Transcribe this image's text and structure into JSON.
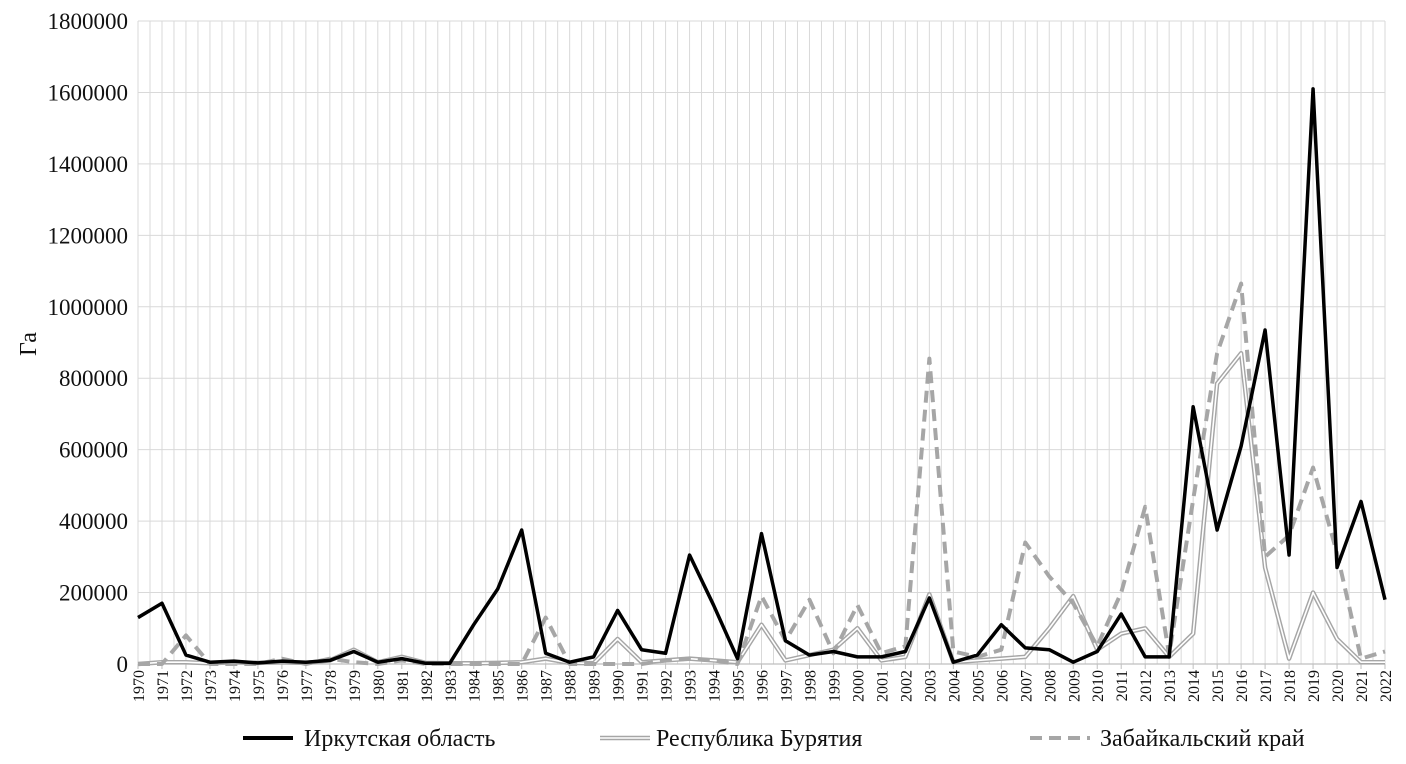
{
  "chart_data": {
    "type": "line",
    "ylabel": "Га",
    "xlabel": "",
    "ylim": [
      0,
      1800000
    ],
    "yticks": [
      0,
      200000,
      400000,
      600000,
      800000,
      1000000,
      1200000,
      1400000,
      1600000,
      1800000
    ],
    "ytick_labels": [
      "0",
      "200000",
      "400000",
      "600000",
      "800000",
      "1000000",
      "1200000",
      "1400000",
      "1600000",
      "1800000"
    ],
    "grid": "vertical and horizontal",
    "legend_position": "bottom",
    "x": [
      1970,
      1971,
      1972,
      1973,
      1974,
      1975,
      1976,
      1977,
      1978,
      1979,
      1980,
      1981,
      1982,
      1983,
      1984,
      1985,
      1986,
      1987,
      1988,
      1989,
      1990,
      1991,
      1992,
      1993,
      1994,
      1995,
      1996,
      1997,
      1998,
      1999,
      2000,
      2001,
      2002,
      2003,
      2004,
      2005,
      2006,
      2007,
      2008,
      2009,
      2010,
      2011,
      2012,
      2013,
      2014,
      2015,
      2016,
      2017,
      2018,
      2019,
      2020,
      2021,
      2022
    ],
    "x_labels": [
      "1970",
      "1971",
      "1972",
      "1973",
      "1974",
      "1975",
      "1976",
      "1977",
      "1978",
      "1979",
      "1980",
      "1981",
      "1982",
      "1983",
      "1984",
      "1985",
      "1986",
      "1987",
      "1988",
      "1989",
      "1990",
      "1991",
      "1992",
      "1993",
      "1994",
      "1995",
      "1996",
      "1997",
      "1998",
      "1999",
      "2000",
      "2001",
      "2002",
      "2003",
      "2004",
      "2005",
      "2006",
      "2007",
      "2008",
      "2009",
      "2010",
      "2011",
      "2012",
      "2013",
      "2014",
      "2015",
      "2016",
      "2017",
      "2018",
      "2019",
      "2020",
      "2021",
      "2022"
    ],
    "series": [
      {
        "name": "Иркутская область",
        "style": "solid-black",
        "color": "#000000",
        "values": [
          130000,
          170000,
          25000,
          5000,
          8000,
          3000,
          8000,
          5000,
          10000,
          35000,
          5000,
          15000,
          2000,
          2000,
          110000,
          210000,
          375000,
          30000,
          5000,
          20000,
          150000,
          40000,
          30000,
          305000,
          165000,
          15000,
          365000,
          65000,
          25000,
          35000,
          20000,
          20000,
          35000,
          185000,
          5000,
          25000,
          110000,
          45000,
          40000,
          5000,
          35000,
          140000,
          20000,
          20000,
          720000,
          375000,
          610000,
          935000,
          305000,
          1610000,
          270000,
          455000,
          180000
        ]
      },
      {
        "name": "Республика Бурятия",
        "style": "double-grey",
        "color": "#a6a6a6",
        "values": [
          0,
          5000,
          5000,
          2000,
          5000,
          3000,
          5000,
          3000,
          10000,
          40000,
          5000,
          20000,
          3000,
          2000,
          2000,
          3000,
          5000,
          15000,
          3000,
          2000,
          70000,
          5000,
          10000,
          15000,
          10000,
          5000,
          110000,
          10000,
          25000,
          40000,
          100000,
          10000,
          20000,
          195000,
          5000,
          10000,
          15000,
          20000,
          100000,
          190000,
          40000,
          85000,
          100000,
          20000,
          85000,
          785000,
          870000,
          270000,
          15000,
          200000,
          70000,
          5000,
          5000
        ]
      },
      {
        "name": "Забайкальский край",
        "style": "dashed-grey",
        "color": "#a6a6a6",
        "values": [
          0,
          0,
          80000,
          0,
          0,
          0,
          15000,
          0,
          15000,
          5000,
          0,
          10000,
          0,
          0,
          0,
          0,
          0,
          130000,
          0,
          0,
          0,
          0,
          10000,
          15000,
          10000,
          0,
          190000,
          65000,
          180000,
          30000,
          165000,
          30000,
          50000,
          855000,
          35000,
          20000,
          40000,
          340000,
          245000,
          170000,
          50000,
          200000,
          440000,
          25000,
          460000,
          870000,
          1065000,
          300000,
          360000,
          550000,
          310000,
          15000,
          35000
        ]
      }
    ]
  }
}
